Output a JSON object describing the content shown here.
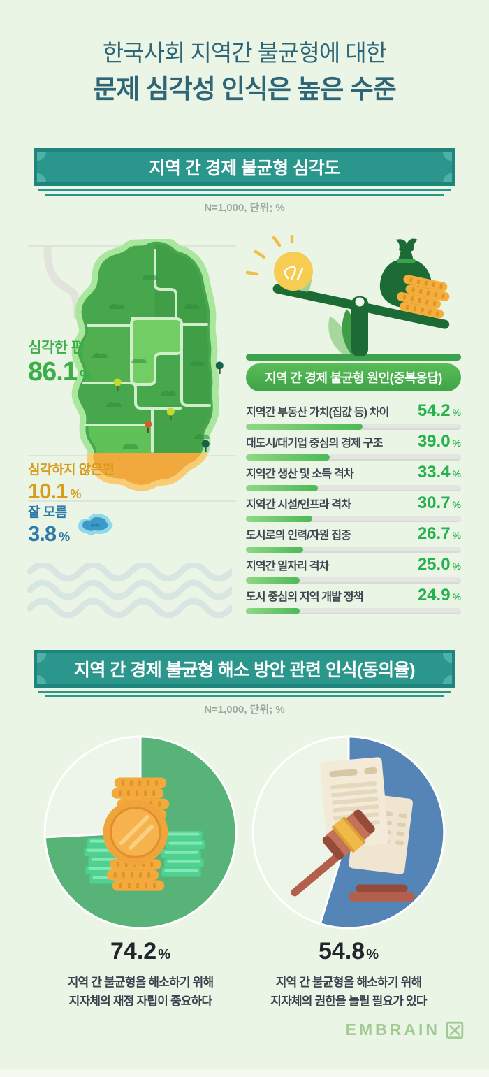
{
  "colors": {
    "background": "#eaf5e6",
    "title_teal": "#2e6577",
    "banner_teal": "#2b968c",
    "banner_border": "#1f857c",
    "positive_green": "#3cae49",
    "bar_green": "#4cb957",
    "warning_orange": "#d89b1b",
    "map_orange": "#f1a93e",
    "info_blue": "#2e7ba9",
    "pie_green": "#57b377",
    "pie_blue": "#5584b6",
    "text_dark": "#3b4650",
    "logo_green": "#a2ca95"
  },
  "header": {
    "title_line1": "한국사회 지역간 불균형에 대한",
    "title_line2": "문제 심각성 인식은 높은 수준"
  },
  "section1": {
    "banner": "지역 간 경제 불균형 심각도",
    "note": "N=1,000, 단위; %",
    "severity": [
      {
        "label": "심각한 편",
        "value": "86.1",
        "unit": "%"
      },
      {
        "label": "심각하지 않은편",
        "value": "10.1",
        "unit": "%"
      },
      {
        "label": "잘 모름",
        "value": "3.8",
        "unit": "%"
      }
    ],
    "causes": {
      "header": "지역 간 경제 불균형 원인(중복응답)",
      "unit": "%",
      "items": [
        {
          "label": "지역간 부동산 가치(집값 등) 차이",
          "value": "54.2"
        },
        {
          "label": "대도시/대기업 중심의 경제 구조",
          "value": "39.0"
        },
        {
          "label": "지역간 생산 및 소득 격차",
          "value": "33.4"
        },
        {
          "label": "지역간 시설/인프라 격차",
          "value": "30.7"
        },
        {
          "label": "도시로의 인력/자원 집중",
          "value": "26.7"
        },
        {
          "label": "지역간 일자리 격차",
          "value": "25.0"
        },
        {
          "label": "도시 중심의 지역 개발 정책",
          "value": "24.9"
        }
      ]
    }
  },
  "section2": {
    "banner": "지역 간 경제 불균형 해소 방안 관련 인식(동의율)",
    "note": "N=1,000, 단위; %",
    "pies": [
      {
        "value": "74.2",
        "unit": "%",
        "color": "#57b377",
        "caption1": "지역 간 불균형을 해소하기 위해",
        "caption2": "지자체의 재정 자립이 중요하다"
      },
      {
        "value": "54.8",
        "unit": "%",
        "color": "#5584b6",
        "caption1": "지역 간 불균형을 해소하기 위해",
        "caption2": "지자체의 권한을 늘릴 필요가 있다"
      }
    ]
  },
  "footer": {
    "logo_text": "EMBRAIN"
  },
  "chart_data": [
    {
      "type": "pie",
      "title": "지역 간 경제 불균형 심각도",
      "note": "N=1,000, 단위; %",
      "categories": [
        "심각한 편",
        "심각하지 않은편",
        "잘 모름"
      ],
      "values": [
        86.1,
        10.1,
        3.8
      ]
    },
    {
      "type": "bar",
      "title": "지역 간 경제 불균형 원인(중복응답)",
      "orientation": "horizontal",
      "categories": [
        "지역간 부동산 가치(집값 등) 차이",
        "대도시/대기업 중심의 경제 구조",
        "지역간 생산 및 소득 격차",
        "지역간 시설/인프라 격차",
        "도시로의 인력/자원 집중",
        "지역간 일자리 격차",
        "도시 중심의 지역 개발 정책"
      ],
      "values": [
        54.2,
        39.0,
        33.4,
        30.7,
        26.7,
        25.0,
        24.9
      ],
      "xlim": [
        0,
        100
      ],
      "ylabel": "",
      "xlabel": ""
    },
    {
      "type": "pie",
      "title": "지역 간 경제 불균형 해소 방안 관련 인식(동의율)",
      "note": "N=1,000, 단위; %",
      "series": [
        {
          "name": "지역 간 불균형을 해소하기 위해 지자체의 재정 자립이 중요하다",
          "values": [
            74.2,
            25.8
          ]
        },
        {
          "name": "지역 간 불균형을 해소하기 위해 지자체의 권한을 늘릴 필요가 있다",
          "values": [
            54.8,
            45.2
          ]
        }
      ]
    }
  ]
}
